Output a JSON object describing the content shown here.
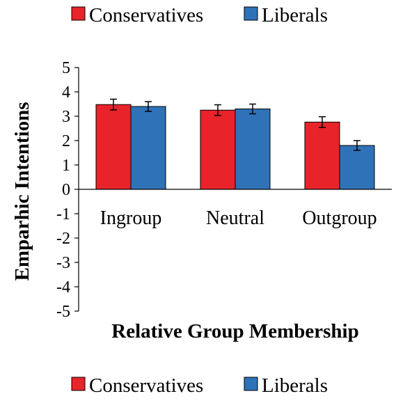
{
  "chart_data": {
    "type": "bar",
    "title": "",
    "xlabel": "Relative Group Membership",
    "ylabel": "Emparhic Intentions",
    "ylim": [
      -5,
      5
    ],
    "yticks": [
      5,
      4,
      3,
      2,
      1,
      0,
      -1,
      -2,
      -3,
      -4,
      -5
    ],
    "categories": [
      "Ingroup",
      "Neutral",
      "Outgroup"
    ],
    "series": [
      {
        "name": "Conservatives",
        "color": "#e8232a",
        "values": [
          3.48,
          3.25,
          2.76
        ],
        "error": [
          0.22,
          0.22,
          0.22
        ]
      },
      {
        "name": "Liberals",
        "color": "#2f72b8",
        "values": [
          3.4,
          3.3,
          1.8
        ],
        "error": [
          0.2,
          0.2,
          0.2
        ]
      }
    ],
    "grid": false,
    "legend": [
      "top",
      "bottom"
    ]
  }
}
